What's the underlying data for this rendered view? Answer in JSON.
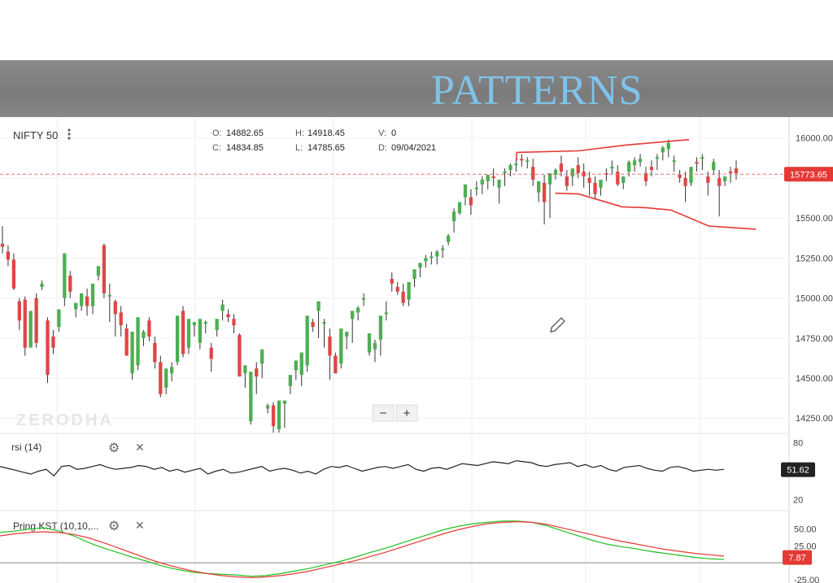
{
  "banner": {
    "title": "PATTERNS"
  },
  "header": {
    "instrument": "NIFTY 50",
    "ohlc": {
      "o_label": "O:",
      "o": "14882.65",
      "h_label": "H:",
      "h": "14918.45",
      "v_label": "V:",
      "v": "0",
      "c_label": "C:",
      "c": "14834.85",
      "l_label": "L:",
      "l": "14785.65",
      "d_label": "D:",
      "d": "09/04/2021"
    }
  },
  "watermark": "ZERODHA",
  "zoom": {
    "minus": "−",
    "plus": "+"
  },
  "colors": {
    "up": "#4caf50",
    "down": "#e04646",
    "trend": "#e53935",
    "kst_fast": "#22c022",
    "kst_slow": "#e53935"
  },
  "chart_data": [
    {
      "type": "candlestick",
      "title": "NIFTY 50",
      "y_ticks": [
        "16000.00",
        "15750.00",
        "15500.00",
        "15250.00",
        "15000.00",
        "14750.00",
        "14500.00",
        "14250.00"
      ],
      "ylim": [
        14175,
        16090
      ],
      "last_price": "15773.65",
      "last_price_value": 15773.65,
      "grid": true,
      "candles": [
        [
          15340,
          15450,
          15320,
          15280
        ],
        [
          15290,
          15330,
          15240,
          15200
        ],
        [
          15240,
          15280,
          15060,
          15050
        ],
        [
          14980,
          15000,
          14860,
          14800
        ],
        [
          14990,
          15010,
          14690,
          14640
        ],
        [
          14690,
          14720,
          14920,
          14740
        ],
        [
          15000,
          15030,
          14720,
          14690
        ],
        [
          15070,
          15110,
          15090,
          15050
        ],
        [
          14860,
          14880,
          14520,
          14470
        ],
        [
          14760,
          14800,
          14690,
          14650
        ],
        [
          14820,
          14850,
          14930,
          14790
        ],
        [
          15000,
          15010,
          15280,
          14950
        ],
        [
          15140,
          15170,
          15040,
          15000
        ],
        [
          14930,
          14950,
          14970,
          14880
        ],
        [
          14950,
          14990,
          15030,
          14920
        ],
        [
          15010,
          15060,
          14950,
          14890
        ],
        [
          14950,
          14990,
          15090,
          14900
        ],
        [
          15140,
          15180,
          15200,
          15110
        ],
        [
          15330,
          15340,
          15030,
          15000
        ],
        [
          15010,
          15090,
          15020,
          14850
        ],
        [
          14980,
          14990,
          14900,
          14760
        ],
        [
          14910,
          14950,
          14830,
          14760
        ],
        [
          14810,
          14840,
          14640,
          14650
        ],
        [
          14530,
          14580,
          14790,
          14490
        ],
        [
          14580,
          14620,
          14880,
          14550
        ],
        [
          14750,
          14800,
          14790,
          14700
        ],
        [
          14860,
          14880,
          14760,
          14730
        ],
        [
          14720,
          14760,
          14600,
          14560
        ],
        [
          14600,
          14640,
          14400,
          14380
        ],
        [
          14440,
          14470,
          14560,
          14400
        ],
        [
          14530,
          14600,
          14570,
          14480
        ],
        [
          14600,
          14630,
          14890,
          14580
        ],
        [
          14920,
          14950,
          14650,
          14630
        ],
        [
          14690,
          14730,
          14870,
          14650
        ],
        [
          14830,
          14850,
          14850,
          14760
        ],
        [
          14720,
          14760,
          14870,
          14680
        ],
        [
          14840,
          14860,
          14850,
          14780
        ],
        [
          14690,
          14720,
          14620,
          14540
        ],
        [
          14800,
          14810,
          14870,
          14760
        ],
        [
          14920,
          14990,
          14960,
          14860
        ],
        [
          14900,
          14930,
          14880,
          14850
        ],
        [
          14870,
          14900,
          14830,
          14780
        ],
        [
          14770,
          14780,
          14510,
          14510
        ],
        [
          14530,
          14560,
          14580,
          14440
        ],
        [
          14230,
          14270,
          14540,
          14210
        ],
        [
          14560,
          14600,
          14510,
          14400
        ],
        [
          14590,
          14650,
          14680,
          14500
        ],
        [
          14310,
          14340,
          14330,
          14280
        ],
        [
          14330,
          14350,
          14200,
          14160
        ],
        [
          14180,
          14190,
          14360,
          14160
        ],
        [
          14340,
          14360,
          14360,
          14190
        ],
        [
          14450,
          14480,
          14520,
          14400
        ],
        [
          14550,
          14560,
          14610,
          14490
        ],
        [
          14520,
          14560,
          14660,
          14450
        ],
        [
          14580,
          14610,
          14890,
          14540
        ],
        [
          14850,
          14870,
          14820,
          14790
        ],
        [
          14920,
          14970,
          14980,
          14750
        ],
        [
          14840,
          14870,
          14850,
          14690
        ],
        [
          14760,
          14810,
          14640,
          14490
        ],
        [
          14640,
          14660,
          14530,
          14530
        ],
        [
          14590,
          14620,
          14810,
          14560
        ],
        [
          14760,
          14790,
          14790,
          14680
        ],
        [
          14870,
          14920,
          14920,
          14720
        ],
        [
          14910,
          14950,
          14940,
          14860
        ],
        [
          14990,
          15030,
          15000,
          14950
        ],
        [
          14660,
          14700,
          14780,
          14640
        ],
        [
          14680,
          14740,
          14720,
          14600
        ],
        [
          14740,
          14800,
          14890,
          14640
        ],
        [
          14900,
          14980,
          14910,
          14860
        ],
        [
          15120,
          15160,
          15090,
          15040
        ],
        [
          15070,
          15100,
          15040,
          15020
        ],
        [
          15040,
          15090,
          14970,
          14950
        ],
        [
          14990,
          15020,
          15100,
          14950
        ],
        [
          15120,
          15140,
          15180,
          15070
        ],
        [
          15190,
          15220,
          15220,
          15130
        ],
        [
          15230,
          15270,
          15250,
          15190
        ],
        [
          15250,
          15290,
          15260,
          15210
        ],
        [
          15260,
          15300,
          15290,
          15210
        ],
        [
          15300,
          15330,
          15310,
          15250
        ],
        [
          15350,
          15400,
          15390,
          15330
        ],
        [
          15480,
          15560,
          15540,
          15410
        ],
        [
          15530,
          15600,
          15600,
          15520
        ],
        [
          15630,
          15660,
          15710,
          15580
        ],
        [
          15630,
          15680,
          15580,
          15520
        ],
        [
          15680,
          15730,
          15690,
          15640
        ],
        [
          15710,
          15760,
          15740,
          15650
        ],
        [
          15730,
          15760,
          15770,
          15680
        ],
        [
          15760,
          15810,
          15750,
          15700
        ],
        [
          15690,
          15730,
          15740,
          15590
        ],
        [
          15780,
          15810,
          15790,
          15700
        ],
        [
          15800,
          15840,
          15830,
          15760
        ],
        [
          15830,
          15870,
          15840,
          15790
        ],
        [
          15870,
          15900,
          15860,
          15820
        ],
        [
          15860,
          15880,
          15860,
          15810
        ],
        [
          15820,
          15870,
          15740,
          15700
        ],
        [
          15660,
          15720,
          15730,
          15600
        ],
        [
          15720,
          15770,
          15600,
          15460
        ],
        [
          15710,
          15750,
          15780,
          15500
        ],
        [
          15770,
          15810,
          15800,
          15740
        ],
        [
          15840,
          15890,
          15790,
          15760
        ],
        [
          15760,
          15800,
          15700,
          15670
        ],
        [
          15760,
          15790,
          15810,
          15700
        ],
        [
          15830,
          15880,
          15780,
          15750
        ],
        [
          15790,
          15840,
          15760,
          15690
        ],
        [
          15750,
          15790,
          15720,
          15640
        ],
        [
          15720,
          15760,
          15650,
          15620
        ],
        [
          15690,
          15720,
          15740,
          15640
        ],
        [
          15780,
          15810,
          15770,
          15730
        ],
        [
          15810,
          15860,
          15820,
          15770
        ],
        [
          15790,
          15830,
          15710,
          15700
        ],
        [
          15720,
          15760,
          15760,
          15680
        ],
        [
          15790,
          15860,
          15850,
          15760
        ],
        [
          15830,
          15880,
          15860,
          15790
        ],
        [
          15850,
          15900,
          15870,
          15820
        ],
        [
          15780,
          15820,
          15730,
          15700
        ],
        [
          15820,
          15860,
          15800,
          15760
        ],
        [
          15870,
          15900,
          15880,
          15800
        ],
        [
          15910,
          15950,
          15940,
          15860
        ],
        [
          15930,
          15990,
          15970,
          15880
        ],
        [
          15850,
          15890,
          15860,
          15790
        ],
        [
          15770,
          15800,
          15750,
          15720
        ],
        [
          15750,
          15790,
          15700,
          15600
        ],
        [
          15720,
          15780,
          15820,
          15700
        ],
        [
          15850,
          15880,
          15840,
          15790
        ],
        [
          15870,
          15900,
          15880,
          15800
        ],
        [
          15760,
          15790,
          15720,
          15640
        ],
        [
          15800,
          15870,
          15850,
          15770
        ],
        [
          15750,
          15800,
          15700,
          15510
        ],
        [
          15730,
          15760,
          15760,
          15700
        ],
        [
          15790,
          15820,
          15780,
          15720
        ],
        [
          15810,
          15860,
          15780,
          15740
        ]
      ],
      "trendlines": [
        {
          "points": [
            [
              0.656,
              15910
            ],
            [
              0.735,
              15920
            ],
            [
              0.793,
              15955
            ],
            [
              0.875,
              15990
            ]
          ]
        },
        {
          "points": [
            [
              0.705,
              15655
            ],
            [
              0.735,
              15650
            ],
            [
              0.79,
              15570
            ],
            [
              0.82,
              15565
            ],
            [
              0.852,
              15550
            ],
            [
              0.9,
              15450
            ],
            [
              0.96,
              15430
            ]
          ]
        },
        {
          "points": [
            [
              0.656,
              15910
            ],
            [
              0.656,
              15860
            ]
          ]
        }
      ]
    },
    {
      "type": "line",
      "title": "rsi (14)",
      "y_ticks": [
        "80",
        "20"
      ],
      "ylim": [
        10,
        90
      ],
      "last_value": "51.62",
      "series": [
        {
          "values": [
            55,
            53,
            51,
            49,
            47,
            50,
            52,
            45,
            55,
            56,
            52,
            53,
            55,
            57,
            54,
            52,
            53,
            54,
            56,
            55,
            52,
            54,
            50,
            52,
            49,
            51,
            53,
            47,
            50,
            52,
            48,
            49,
            51,
            53,
            55,
            50,
            52,
            53,
            51,
            48,
            50,
            47,
            52,
            55,
            54,
            56,
            53,
            50,
            52,
            54,
            55,
            53,
            55,
            57,
            52,
            50,
            53,
            54,
            52,
            55,
            58,
            57,
            56,
            58,
            60,
            59,
            58,
            61,
            60,
            59,
            56,
            55,
            57,
            58,
            59,
            55,
            57,
            54,
            56,
            52,
            50,
            54,
            55,
            56,
            53,
            51,
            50,
            54,
            55,
            53,
            50,
            51,
            52,
            51,
            52
          ]
        }
      ]
    },
    {
      "type": "line",
      "title": "Pring KST (10,10,...",
      "y_ticks": [
        "50.00",
        "25.00",
        "-25.00"
      ],
      "ylim": [
        -30,
        75
      ],
      "last_value": "7.87",
      "series": [
        {
          "values": [
            45,
            47,
            50,
            52,
            47,
            40,
            30,
            22,
            15,
            8,
            2,
            -5,
            -10,
            -14,
            -16,
            -17,
            -18,
            -20,
            -19,
            -16,
            -12,
            -8,
            -3,
            2,
            8,
            15,
            21,
            28,
            35,
            42,
            49,
            54,
            58,
            60,
            62,
            62,
            60,
            55,
            48,
            41,
            34,
            28,
            24,
            21,
            17,
            14,
            11,
            8,
            6,
            5
          ]
        },
        {
          "values": [
            40,
            43,
            45,
            46,
            45,
            42,
            37,
            30,
            22,
            14,
            6,
            -1,
            -7,
            -12,
            -16,
            -19,
            -21,
            -22,
            -21,
            -19,
            -16,
            -12,
            -7,
            -2,
            3,
            9,
            15,
            22,
            29,
            36,
            43,
            49,
            54,
            58,
            60,
            61,
            60,
            57,
            52,
            47,
            42,
            37,
            32,
            28,
            24,
            20,
            17,
            14,
            12,
            10
          ]
        }
      ]
    }
  ],
  "panes": {
    "rsi": {
      "title": "rsi (14)",
      "settings": "⚙",
      "close": "✕"
    },
    "kst": {
      "title": "Pring KST (10,10,...",
      "settings": "⚙",
      "close": "✕"
    }
  }
}
